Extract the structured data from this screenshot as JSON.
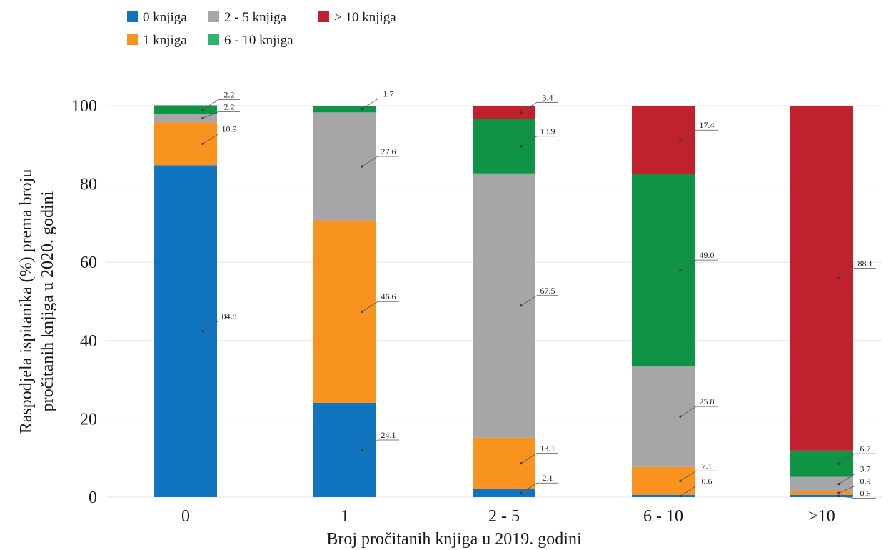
{
  "chart_data": {
    "type": "bar",
    "stacked": true,
    "categories": [
      "0",
      "1",
      "2 - 5",
      "6 - 10",
      ">10"
    ],
    "series": [
      {
        "name": "0 knjiga",
        "color": "#1174BF",
        "values": [
          84.8,
          24.1,
          2.1,
          0.6,
          0.6
        ]
      },
      {
        "name": "1 knjiga",
        "color": "#F7931E",
        "values": [
          10.9,
          46.6,
          13.1,
          7.1,
          0.9
        ]
      },
      {
        "name": "2 - 5 knjiga",
        "color": "#A6A6A8",
        "values": [
          2.2,
          27.6,
          67.5,
          25.8,
          3.7
        ]
      },
      {
        "name": "6 - 10 knjiga",
        "color": "#0E9444",
        "legend_color": "#2DB46E",
        "values": [
          2.2,
          1.7,
          13.9,
          49.0,
          6.7
        ]
      },
      {
        "name": "> 10 knjiga",
        "color": "#C1202D",
        "values": [
          0,
          0,
          3.4,
          17.4,
          88.1
        ]
      }
    ],
    "data_labels": [
      [
        "84.8",
        "10.9",
        "2.2",
        "2.2",
        ""
      ],
      [
        "24.1",
        "46.6",
        "27.6",
        "1.7",
        ""
      ],
      [
        "2.1",
        "13.1",
        "67.5",
        "13.9",
        "3.4"
      ],
      [
        "0.6",
        "7.1",
        "25.8",
        "49.0",
        "17.4"
      ],
      [
        "0.6",
        "0.9",
        "3.7",
        "6.7",
        "88.1"
      ]
    ],
    "xlabel": "Broj pročitanih knjiga u 2019. godini",
    "ylabel_line1": "Raspodjela ispitanika (%) prema broju",
    "ylabel_line2": "pročitanih knjiga u 2020. godini",
    "ylim": [
      0,
      100
    ],
    "yticks": [
      0,
      20,
      40,
      60,
      80,
      100
    ],
    "grid": true,
    "legend_position": "top-left"
  }
}
